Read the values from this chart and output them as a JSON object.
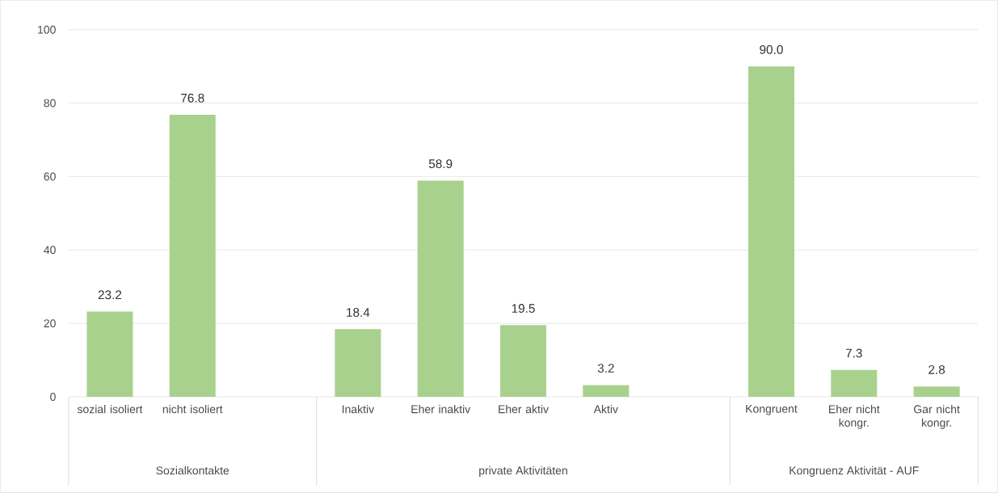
{
  "chart_data": {
    "type": "bar",
    "categories": [
      "sozial isoliert",
      "nicht isoliert",
      null,
      "Inaktiv",
      "Eher inaktiv",
      "Eher aktiv",
      "Aktiv",
      null,
      "Kongruent",
      "Eher nicht kongr.",
      "Gar nicht kongr."
    ],
    "values": [
      23.2,
      76.8,
      null,
      18.4,
      58.9,
      19.5,
      3.2,
      null,
      90.0,
      7.3,
      2.8
    ],
    "value_labels": [
      "23.2",
      "76.8",
      null,
      "18.4",
      "58.9",
      "19.5",
      "3.2",
      null,
      "90.0",
      "7.3",
      "2.8"
    ],
    "color": "#a9d18e",
    "ylim": [
      0,
      100
    ],
    "yticks": [
      0,
      20,
      40,
      60,
      80,
      100
    ],
    "grid": "y",
    "annotations": [
      "Sozialkontakte",
      "private Aktivitäten",
      "Kongruenz Aktivität - AUF"
    ]
  }
}
